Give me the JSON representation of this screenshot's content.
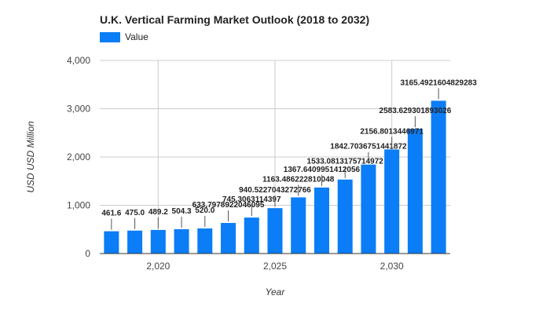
{
  "chart_data": {
    "type": "bar",
    "title": "U.K.  Vertical Farming Market Outlook (2018 to 2032)",
    "xlabel": "Year",
    "ylabel": "USD USD Million",
    "x": [
      2018,
      2019,
      2020,
      2021,
      2022,
      2023,
      2024,
      2025,
      2026,
      2027,
      2028,
      2029,
      2030,
      2031,
      2032
    ],
    "series": [
      {
        "name": "Value",
        "values": [
          461.6,
          475.0,
          489.2,
          504.3,
          520.0,
          633.7978922046095,
          745.3063114397,
          940.5227043272766,
          1163.486222810048,
          1367.6409951412056,
          1533.0813175714973,
          1842.7036751441872,
          2156.8013446971,
          2583.629301893026,
          3165.4921604829283
        ],
        "labels": [
          "461.6",
          "475.0",
          "489.2",
          "504.3",
          "520.0",
          "633.7978922046095",
          "745.3063114397",
          "940.5227043272766",
          "1163.486222810048",
          "1367.6409951412056",
          "1533.0813175714972",
          "1842.7036751441872",
          "2156.8013446971",
          "2583.629301893026",
          "3165.4921604829283"
        ]
      }
    ],
    "ylim": [
      0,
      4000
    ],
    "yticks": [
      0,
      1000,
      2000,
      3000,
      4000
    ],
    "ytick_labels": [
      "0",
      "1,000",
      "2,000",
      "3,000",
      "4,000"
    ],
    "xticks": [
      2020,
      2025,
      2030
    ],
    "xtick_labels": [
      "2,020",
      "2,025",
      "2,030"
    ],
    "grid": true,
    "legend_position": "top-left",
    "bar_color": "#0b7df7",
    "grid_color": "#cccccc"
  }
}
